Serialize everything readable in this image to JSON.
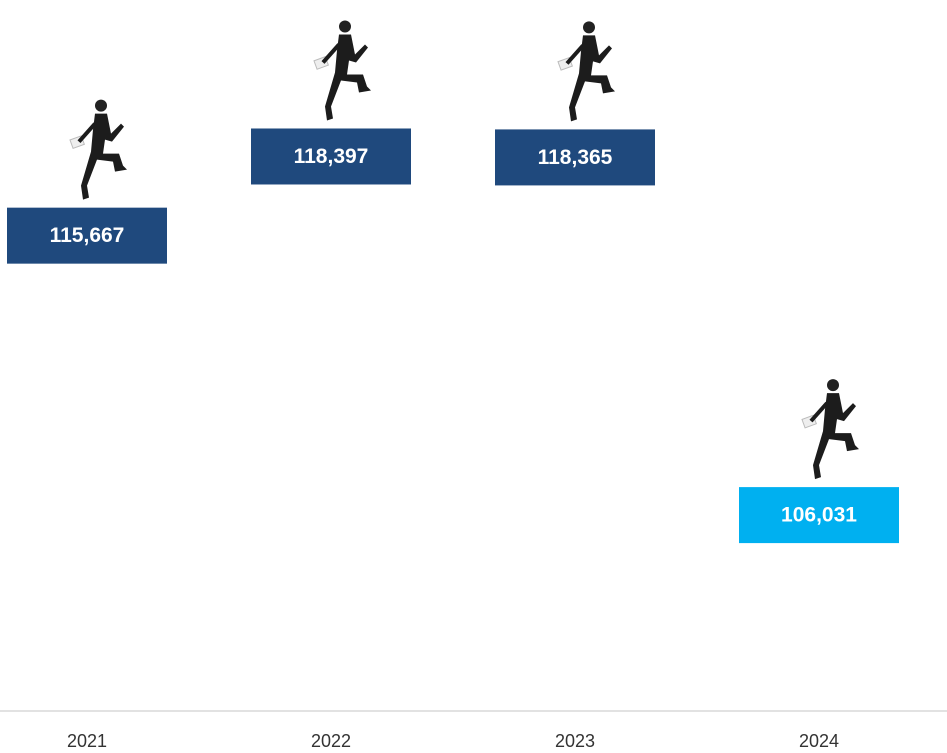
{
  "chart_data": {
    "type": "label-dots",
    "categories": [
      "2021",
      "2022",
      "2023",
      "2024"
    ],
    "values": [
      115667,
      118397,
      118365,
      106031
    ],
    "value_labels": [
      "115,667",
      "118,397",
      "118,365",
      "106,031"
    ],
    "colors": [
      "#1f497d",
      "#1f497d",
      "#1f497d",
      "#00b0f0"
    ],
    "ylim": [
      100000,
      120000
    ]
  }
}
